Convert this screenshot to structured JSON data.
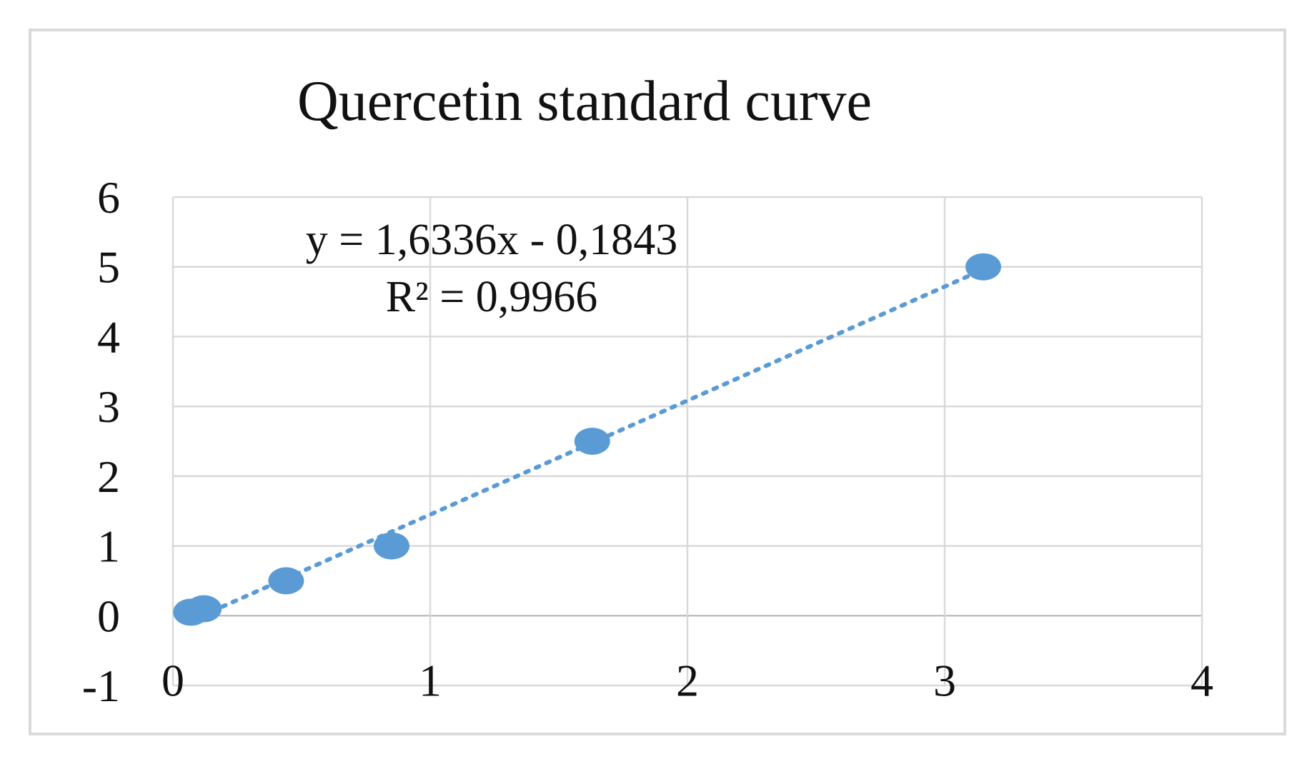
{
  "colors": {
    "marker": "#5b9bd5",
    "trendline": "#5b9bd5",
    "grid": "#d9d9d9",
    "frame": "#d9d9d9"
  },
  "chart_data": {
    "type": "scatter",
    "title": "Quercetin standard curve",
    "xlabel": "",
    "ylabel": "",
    "xlim": [
      0,
      4
    ],
    "ylim": [
      -1,
      6
    ],
    "x_ticks": [
      "0",
      "1",
      "2",
      "3",
      "4"
    ],
    "y_ticks": [
      "-1",
      "0",
      "1",
      "2",
      "3",
      "4",
      "5",
      "6"
    ],
    "grid": true,
    "legend": "none",
    "series": [
      {
        "x": [
          0.07,
          0.12,
          0.44,
          0.85,
          1.63,
          3.15
        ],
        "y": [
          0.05,
          0.1,
          0.5,
          1.0,
          2.5,
          5.0
        ]
      }
    ],
    "trendline": {
      "type": "linear",
      "style": "dotted",
      "slope": 1.6336,
      "intercept": -0.1843,
      "equation": "y = 1,6336x - 0,1843",
      "r_squared": "R² = 0,9966"
    }
  }
}
